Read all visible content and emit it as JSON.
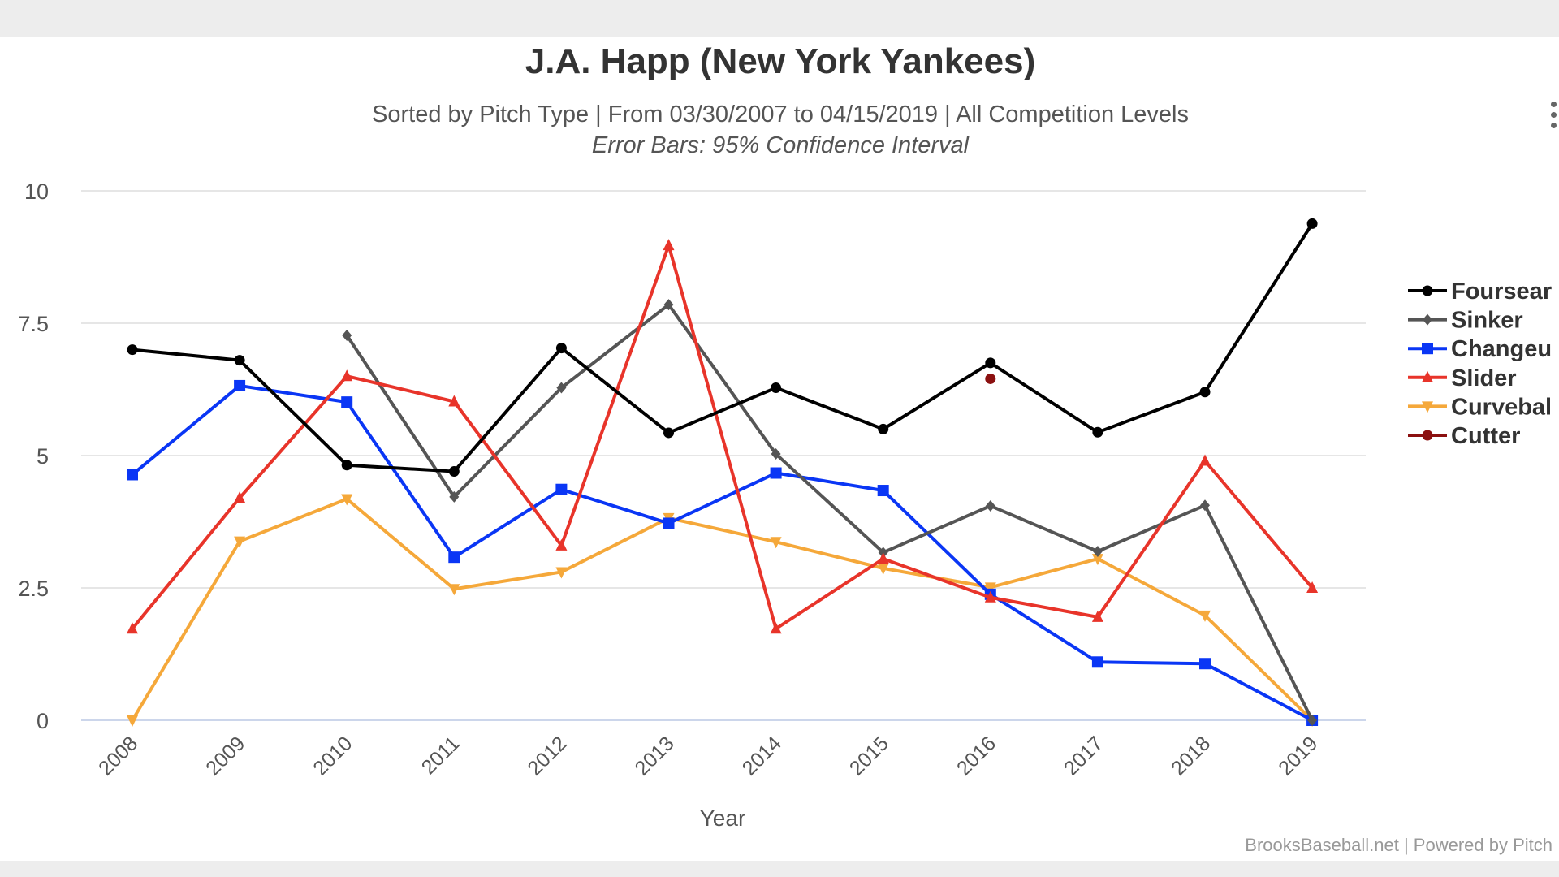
{
  "chart_data": {
    "type": "line",
    "title": "J.A. Happ (New York Yankees)",
    "subtitle": "Sorted by Pitch Type | From 03/30/2007 to 04/15/2019 | All Competition Levels",
    "subtitle2": "Error Bars: 95% Confidence Interval",
    "xlabel": "Year",
    "ylabel": "",
    "credits": "BrooksBaseball.net | Powered by Pitch",
    "categories": [
      "2008",
      "2009",
      "2010",
      "2011",
      "2012",
      "2013",
      "2014",
      "2015",
      "2016",
      "2017",
      "2018",
      "2019"
    ],
    "y_ticks": [
      0,
      2.5,
      5,
      7.5,
      10
    ],
    "y_tick_labels": [
      "0",
      "2.5",
      "5",
      "7.5",
      "10"
    ],
    "ylim": [
      0,
      10
    ],
    "grid": true,
    "legend_position": "right",
    "series": [
      {
        "name": "Foursear",
        "color": "#000000",
        "marker": "circle",
        "values": [
          7.0,
          6.8,
          4.82,
          4.7,
          7.03,
          5.43,
          6.28,
          5.5,
          6.75,
          5.44,
          6.2,
          9.38
        ]
      },
      {
        "name": "Sinker",
        "color": "#555555",
        "marker": "diamond",
        "values": [
          null,
          null,
          7.27,
          4.22,
          6.28,
          7.85,
          5.03,
          3.17,
          4.05,
          3.19,
          4.06,
          0.0
        ]
      },
      {
        "name": "Changeu",
        "color": "#0a36f5",
        "marker": "square",
        "values": [
          4.64,
          6.32,
          6.01,
          3.08,
          4.36,
          3.72,
          4.67,
          4.34,
          2.38,
          1.1,
          1.07,
          0.0
        ]
      },
      {
        "name": "Slider",
        "color": "#e8342a",
        "marker": "triangle",
        "values": [
          1.73,
          4.2,
          6.5,
          6.02,
          3.3,
          8.97,
          1.73,
          3.05,
          2.32,
          1.95,
          4.9,
          2.5
        ]
      },
      {
        "name": "Curvebal",
        "color": "#f5a83a",
        "marker": "triangle-down",
        "values": [
          0.0,
          3.38,
          4.18,
          2.48,
          2.8,
          3.82,
          3.37,
          2.87,
          2.51,
          3.05,
          1.98,
          0.0
        ]
      },
      {
        "name": "Cutter",
        "color": "#8b1010",
        "marker": "circle",
        "values": [
          null,
          null,
          null,
          null,
          null,
          null,
          null,
          null,
          6.45,
          null,
          null,
          null
        ]
      }
    ]
  }
}
